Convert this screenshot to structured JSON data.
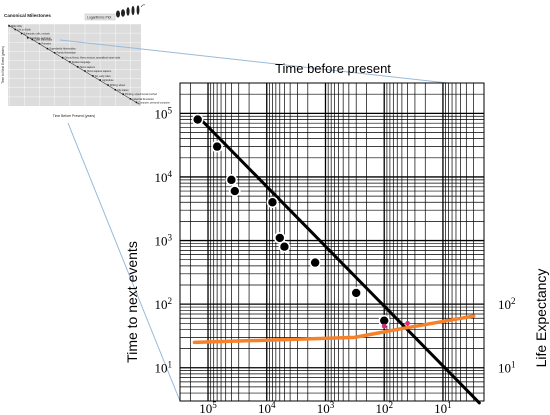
{
  "chart_data": [
    {
      "type": "scatter",
      "role": "inset-thumbnail",
      "title": "Canonical Milestones",
      "scale_badge": "Logarithmic Plot",
      "xlabel": "Time Before Present (years)",
      "ylabel": "Time to Next Event (years)",
      "scale": "log-log",
      "x_reversed": true,
      "series": [
        {
          "x": [
            10000000000,
            4000000000,
            1500000000,
            600000000,
            300000000,
            100000000,
            30000000,
            10000000,
            3000000,
            1000000,
            300000,
            100000,
            30000,
            10000,
            3000,
            1000,
            300,
            100,
            40
          ],
          "y": [
            6000000000,
            2500000000,
            900000000,
            300000000,
            200000000,
            70000000,
            20000000,
            7000000,
            2000000,
            700000,
            200000,
            70000,
            20000,
            7000,
            2000,
            600,
            200,
            60,
            25
          ]
        }
      ],
      "annotations": [
        "Milky Way",
        "Life on Earth",
        "Eukaryotic cells, meiosis",
        "Cambrian explosion",
        "Class Mammalia",
        "Primates",
        "Superfamily Hominoidea",
        "Family Hominidae",
        "Genus Homo, Homo erectus, specialized stone tools",
        "Spoken language",
        "Homo sapiens",
        "Homo sapiens sapiens",
        "Art, early cities",
        "Agriculture",
        "Writing, wheel",
        "City states",
        "Printing, experimental method",
        "Industrial Revolution",
        "Computer, personal computer"
      ]
    },
    {
      "type": "scatter",
      "role": "main",
      "title": "Time before present",
      "xlabel": "",
      "ylabel": "Time to next events",
      "ylabel_right": "Life Expectancy",
      "scale": "log-log",
      "x_reversed": true,
      "xlim": [
        300000,
        2
      ],
      "ylim": [
        3,
        300000
      ],
      "x_ticks": [
        {
          "value": 100000,
          "base": "10",
          "exp": "5"
        },
        {
          "value": 10000,
          "base": "10",
          "exp": "4"
        },
        {
          "value": 1000,
          "base": "10",
          "exp": "3"
        },
        {
          "value": 100,
          "base": "10",
          "exp": "2"
        },
        {
          "value": 10,
          "base": "10",
          "exp": "1"
        }
      ],
      "y_ticks": [
        {
          "value": 100000,
          "base": "10",
          "exp": "5"
        },
        {
          "value": 10000,
          "base": "10",
          "exp": "4"
        },
        {
          "value": 1000,
          "base": "10",
          "exp": "3"
        },
        {
          "value": 100,
          "base": "10",
          "exp": "2"
        },
        {
          "value": 10,
          "base": "10",
          "exp": "1"
        }
      ],
      "y2_ticks": [
        {
          "value": 100,
          "base": "10",
          "exp": "2"
        },
        {
          "value": 10,
          "base": "10",
          "exp": "1"
        }
      ],
      "grid": true,
      "series": [
        {
          "kind": "points",
          "color": "#000000",
          "x": [
            150000,
            70000,
            40000,
            35000,
            8000,
            6000,
            5000,
            1500,
            300,
            100
          ],
          "y": [
            80000,
            30000,
            9000,
            6000,
            4000,
            1100,
            800,
            450,
            150,
            55
          ]
        },
        {
          "kind": "trend-line",
          "color": "#000000",
          "x": [
            150000,
            2.4
          ],
          "y": [
            90000,
            2.8
          ]
        },
        {
          "kind": "life-expectancy-line",
          "color": "#f5822a",
          "x": [
            170000,
            320,
            60,
            3
          ],
          "y": [
            25,
            30,
            40,
            65
          ]
        },
        {
          "kind": "points",
          "color": "#e0287a",
          "x": [
            100,
            40
          ],
          "y": [
            45,
            50
          ]
        }
      ]
    }
  ]
}
